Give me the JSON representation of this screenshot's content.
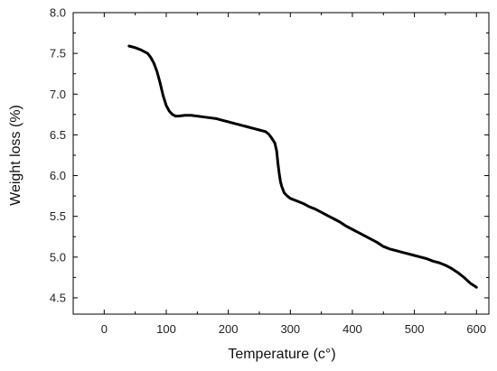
{
  "chart_data": {
    "type": "line",
    "title": "",
    "xlabel": "Temperature (c°)",
    "ylabel": "Weight loss (%)",
    "xlim": [
      -50,
      620
    ],
    "ylim": [
      4.3,
      8.0
    ],
    "xticks": [
      0,
      100,
      200,
      300,
      400,
      500,
      600
    ],
    "xtick_labels": [
      "0",
      "100",
      "200",
      "300",
      "400",
      "500",
      "600"
    ],
    "yticks": [
      4.5,
      5.0,
      5.5,
      6.0,
      6.5,
      7.0,
      7.5,
      8.0
    ],
    "ytick_labels": [
      "4.5",
      "5.0",
      "5.5",
      "6.0",
      "6.5",
      "7.0",
      "7.5",
      "8.0"
    ],
    "grid": false,
    "line_color": "#000000",
    "series": [
      {
        "x": [
          40,
          50,
          60,
          70,
          75,
          80,
          85,
          90,
          95,
          100,
          105,
          110,
          115,
          120,
          130,
          140,
          150,
          160,
          170,
          180,
          190,
          200,
          210,
          220,
          230,
          240,
          250,
          260,
          265,
          270,
          275,
          278,
          280,
          282,
          284,
          286,
          288,
          290,
          295,
          300,
          310,
          320,
          330,
          340,
          350,
          360,
          370,
          380,
          390,
          400,
          410,
          420,
          430,
          440,
          450,
          460,
          470,
          480,
          490,
          500,
          510,
          520,
          530,
          540,
          550,
          560,
          570,
          580,
          590,
          600
        ],
        "y": [
          7.59,
          7.57,
          7.54,
          7.5,
          7.45,
          7.38,
          7.28,
          7.14,
          6.98,
          6.86,
          6.79,
          6.75,
          6.73,
          6.73,
          6.74,
          6.74,
          6.73,
          6.72,
          6.71,
          6.7,
          6.68,
          6.66,
          6.64,
          6.62,
          6.6,
          6.58,
          6.56,
          6.54,
          6.51,
          6.46,
          6.4,
          6.3,
          6.15,
          6.03,
          5.93,
          5.87,
          5.83,
          5.79,
          5.75,
          5.72,
          5.69,
          5.66,
          5.62,
          5.59,
          5.55,
          5.51,
          5.47,
          5.43,
          5.38,
          5.34,
          5.3,
          5.26,
          5.22,
          5.18,
          5.13,
          5.1,
          5.08,
          5.06,
          5.04,
          5.02,
          5.0,
          4.98,
          4.95,
          4.93,
          4.9,
          4.86,
          4.81,
          4.75,
          4.68,
          4.63
        ]
      }
    ]
  }
}
